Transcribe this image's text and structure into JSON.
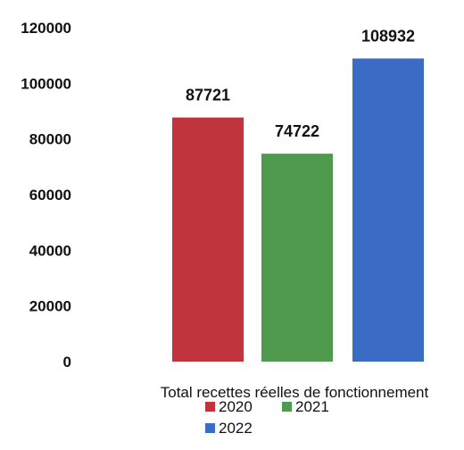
{
  "chart_data": {
    "type": "bar",
    "categories": [
      "Total recettes réelles de fonctionnement"
    ],
    "series": [
      {
        "name": "2020",
        "values": [
          87721
        ],
        "color": "#c0343d"
      },
      {
        "name": "2021",
        "values": [
          74722
        ],
        "color": "#4f9a4f"
      },
      {
        "name": "2022",
        "values": [
          108932
        ],
        "color": "#3a6cc4"
      }
    ],
    "ylim": [
      0,
      120000
    ],
    "yticks": [
      "0",
      "20000",
      "40000",
      "60000",
      "80000",
      "100000",
      "120000"
    ],
    "data_labels": [
      "87721",
      "74722",
      "108932"
    ],
    "grid": false,
    "legend": "bottom"
  }
}
